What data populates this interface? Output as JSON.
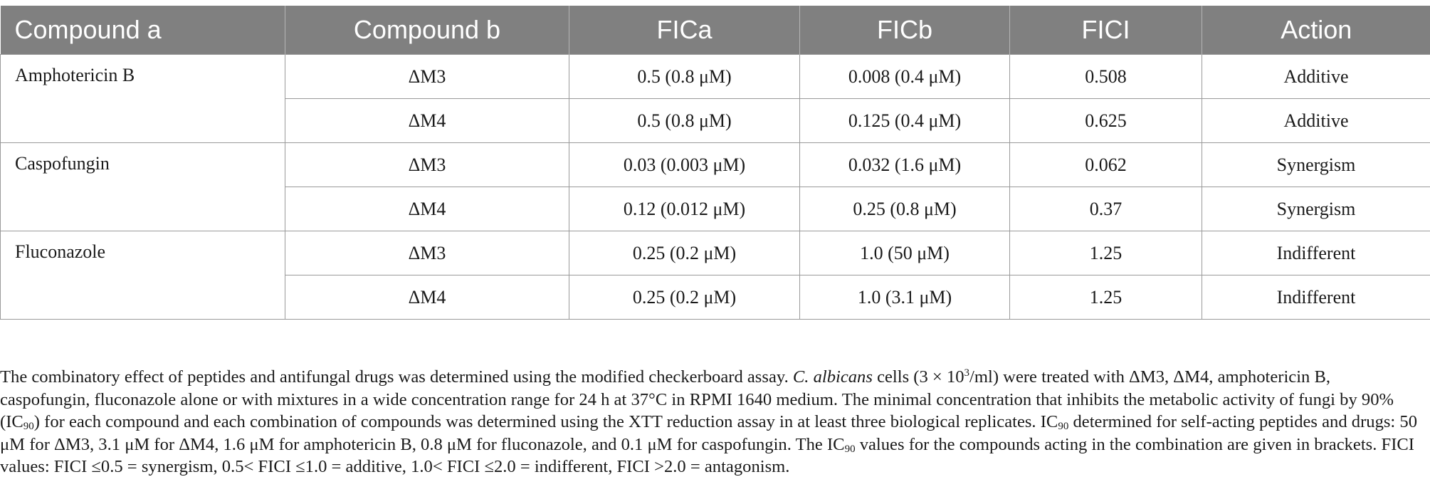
{
  "table": {
    "headers": [
      "Compound a",
      "Compound b",
      "FICa",
      "FICb",
      "FICI",
      "Action"
    ],
    "groups": [
      {
        "compound_a": "Amphotericin B",
        "rows": [
          {
            "compound_b": "ΔM3",
            "fica": "0.5 (0.8 μM)",
            "ficb": "0.008 (0.4 μM)",
            "fici": "0.508",
            "action": "Additive"
          },
          {
            "compound_b": "ΔM4",
            "fica": "0.5 (0.8 μM)",
            "ficb": "0.125 (0.4 μM)",
            "fici": "0.625",
            "action": "Additive"
          }
        ]
      },
      {
        "compound_a": "Caspofungin",
        "rows": [
          {
            "compound_b": "ΔM3",
            "fica": "0.03 (0.003 μM)",
            "ficb": "0.032 (1.6 μM)",
            "fici": "0.062",
            "action": "Synergism"
          },
          {
            "compound_b": "ΔM4",
            "fica": "0.12 (0.012 μM)",
            "ficb": "0.25 (0.8 μM)",
            "fici": "0.37",
            "action": "Synergism"
          }
        ]
      },
      {
        "compound_a": "Fluconazole",
        "rows": [
          {
            "compound_b": "ΔM3",
            "fica": "0.25 (0.2 μM)",
            "ficb": "1.0 (50 μM)",
            "fici": "1.25",
            "action": "Indifferent"
          },
          {
            "compound_b": "ΔM4",
            "fica": "0.25 (0.2 μM)",
            "ficb": "1.0 (3.1 μM)",
            "fici": "1.25",
            "action": "Indifferent"
          }
        ]
      }
    ]
  },
  "footnote": {
    "s1": "The combinatory effect of peptides and antifungal drugs was determined using the modified checkerboard assay. ",
    "species": "C. albicans",
    "s2": " cells (3 × 10",
    "exp": "3",
    "s3": "/ml) were treated with ΔM3, ΔM4, amphotericin B, caspofungin, fluconazole alone or with mixtures in a wide concentration range for 24 h at 37°C in RPMI 1640 medium. The minimal concentration that inhibits the metabolic activity of fungi by 90% (IC",
    "sub1": "90",
    "s4": ") for each compound and each combination of compounds was determined using the XTT reduction assay in at least three biological replicates. IC",
    "sub2": "90",
    "s5": " determined for self-acting peptides and drugs: 50 μM for ΔM3, 3.1 μM for ΔM4, 1.6 μM for amphotericin B, 0.8 μM for fluconazole, and 0.1 μM for caspofungin. The IC",
    "sub3": "90",
    "s6": " values for the compounds acting in the combination are given in brackets. FICI values: FICI ≤0.5 = synergism, 0.5< FICI ≤1.0 = additive, 1.0< FICI ≤2.0 = indifferent, FICI >2.0 = antagonism."
  }
}
